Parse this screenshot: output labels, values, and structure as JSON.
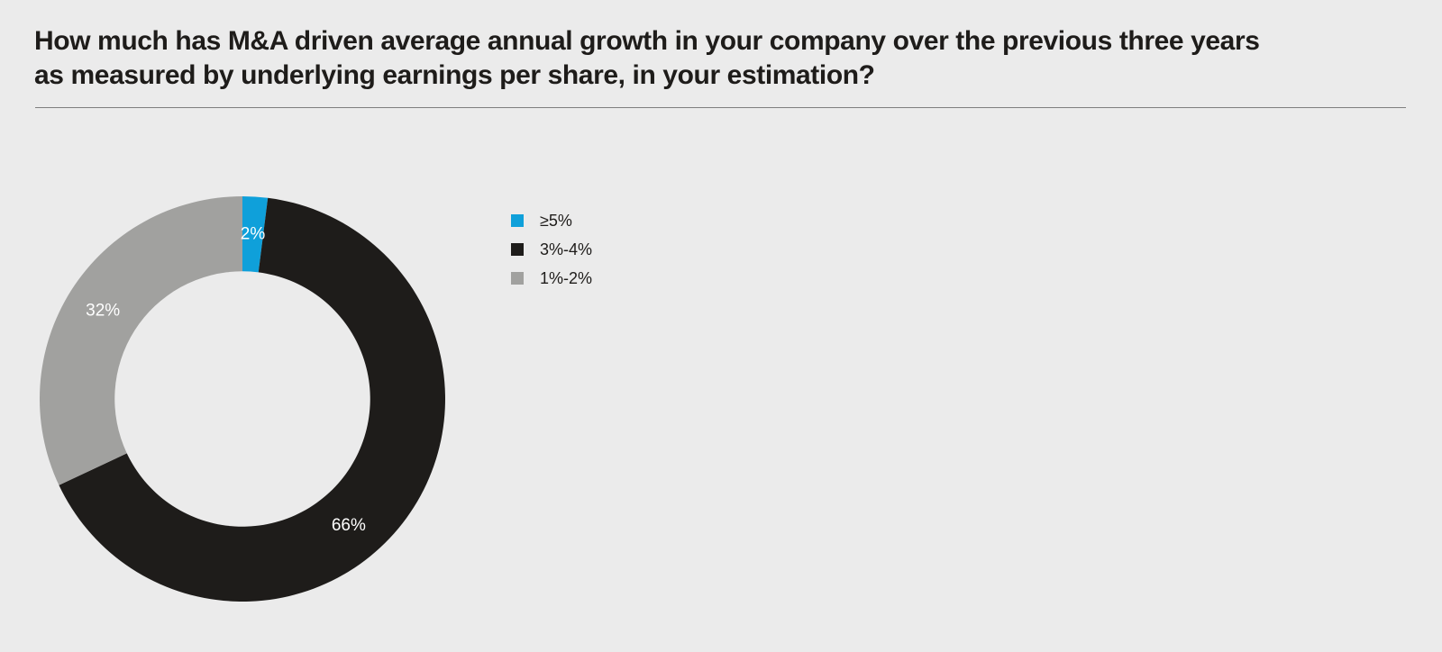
{
  "page": {
    "background_color": "#ebebeb"
  },
  "header": {
    "title_line1": "How much has M&A driven average annual growth in your company over the previous three years",
    "title_line2": "as measured by underlying earnings per share, in your estimation?"
  },
  "chart_data": {
    "type": "pie",
    "subtype": "donut",
    "categories": [
      "≥5%",
      "3%-4%",
      "1%-2%"
    ],
    "values": [
      2,
      66,
      32
    ],
    "unit": "%",
    "slice_labels": [
      "2%",
      "66%",
      "32%"
    ],
    "colors": [
      "#0fa0da",
      "#1e1c1a",
      "#a1a19f"
    ],
    "label_color": "#ffffff",
    "start_angle_deg": 0,
    "direction": "clockwise",
    "inner_radius_ratio": 0.63,
    "label_radius_ratio": 0.815,
    "label_angles_deg": [
      3.6,
      140,
      302.4
    ],
    "legend_position": "right",
    "legend_items": [
      "≥5%",
      "3%-4%",
      "1%-2%"
    ]
  }
}
